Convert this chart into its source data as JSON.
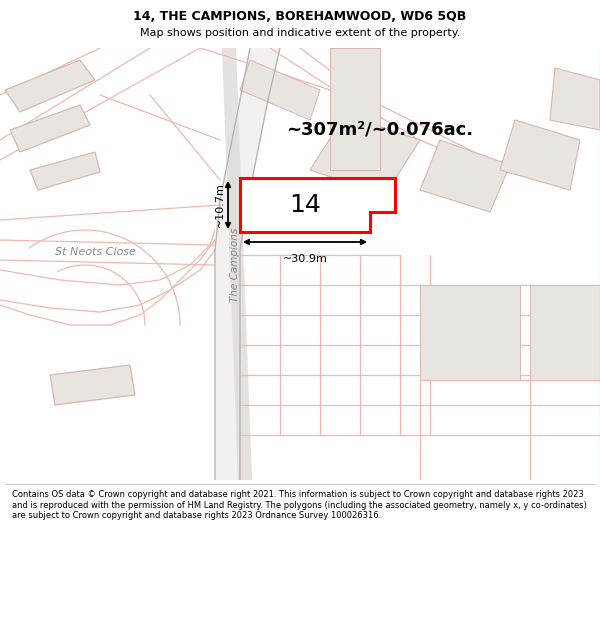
{
  "title": "14, THE CAMPIONS, BOREHAMWOOD, WD6 5QB",
  "subtitle": "Map shows position and indicative extent of the property.",
  "footer": "Contains OS data © Crown copyright and database right 2021. This information is subject to Crown copyright and database rights 2023 and is reproduced with the permission of HM Land Registry. The polygons (including the associated geometry, namely x, y co-ordinates) are subject to Crown copyright and database rights 2023 Ordnance Survey 100026316.",
  "area_text": "~307m²/~0.076ac.",
  "width_label": "~30.9m",
  "height_label": "~10.7m",
  "number_label": "14",
  "map_bg": "#f5f3f0",
  "road_line_color": "#f0b8b0",
  "building_fill": "#e8e5e0",
  "building_stroke": "#d8b8b0",
  "road_gray_fill": "#d8d5d2",
  "highlight_color": "#ff0000",
  "street_label_1": "St Neots Close",
  "street_label_2": "The Campions",
  "title_fontsize": 9,
  "subtitle_fontsize": 8,
  "footer_fontsize": 6.0
}
